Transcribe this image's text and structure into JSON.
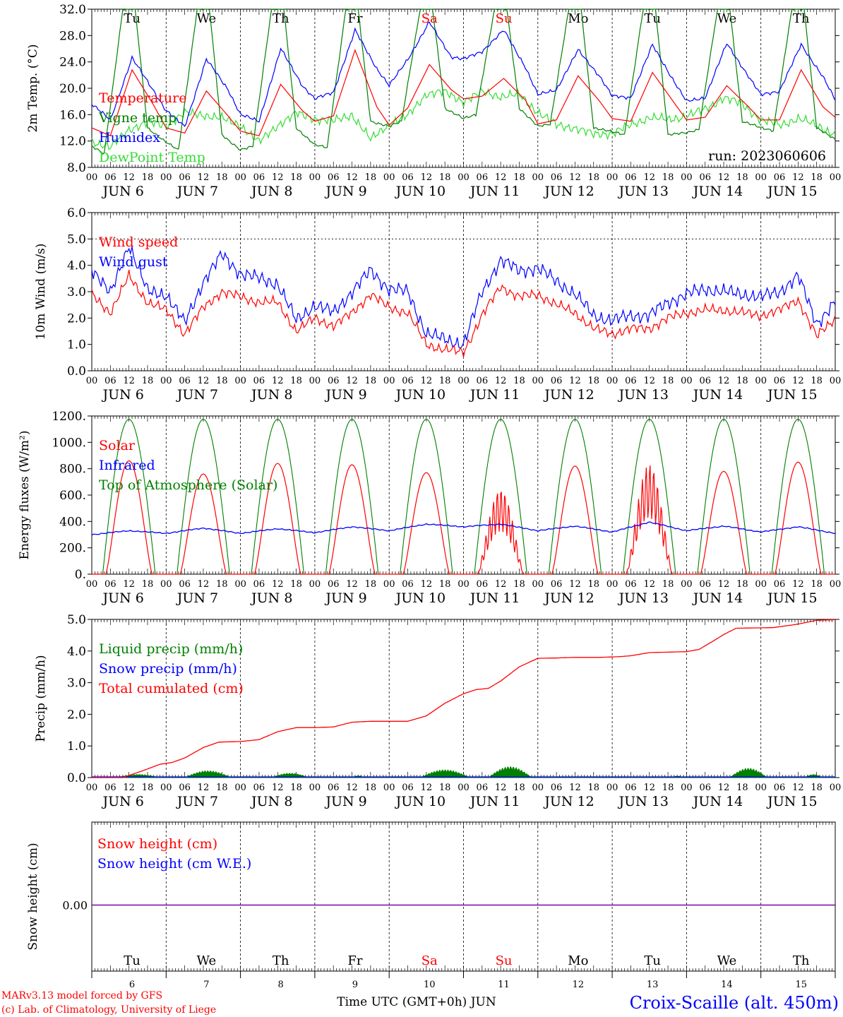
{
  "meta": {
    "footer_left_line1": "MARv3.13 model forced by GFS",
    "footer_left_line2": "(c) Lab. of Climatology, University of Liege",
    "footer_center": "Time UTC (GMT+0h) JUN",
    "footer_right": "Croix-Scaille (alt. 450m)",
    "run_label": "run: 2023060606",
    "colors": {
      "red": "#ff0000",
      "blue": "#0000ff",
      "darkgreen": "#008000",
      "lightgreen": "#33dd33",
      "purple": "#8000b0",
      "axis": "#000000"
    }
  },
  "days": {
    "weekday": [
      "Tu",
      "We",
      "Th",
      "Fr",
      "Sa",
      "Su",
      "Mo",
      "Tu",
      "We",
      "Th"
    ],
    "weekend_flags": [
      false,
      false,
      false,
      false,
      true,
      true,
      false,
      false,
      false,
      false
    ],
    "date_labels": [
      "JUN  6",
      "JUN  7",
      "JUN  8",
      "JUN  9",
      "JUN 10",
      "JUN 11",
      "JUN 12",
      "JUN 13",
      "JUN 14",
      "JUN 15"
    ],
    "day_numbers": [
      "6",
      "7",
      "8",
      "9",
      "10",
      "11",
      "12",
      "13",
      "14",
      "15"
    ],
    "hour_ticks": [
      "00",
      "06",
      "12",
      "18"
    ],
    "final_tick": "00"
  },
  "chart_data": [
    {
      "id": "temperature",
      "type": "line",
      "ylabel": "2m Temp. (°C)",
      "ylim": [
        8,
        32
      ],
      "yticks": [
        "8.0",
        "12.0",
        "16.0",
        "20.0",
        "24.0",
        "28.0",
        "32.0"
      ],
      "x_unit": "hours since JUN 6 00 UTC",
      "series": [
        {
          "name": "Temperature",
          "color": "#ff0000",
          "x": [
            0,
            6,
            13,
            20,
            24,
            30,
            37,
            44,
            48,
            54,
            61,
            68,
            72,
            78,
            85,
            92,
            96,
            102,
            109,
            116,
            120,
            126,
            133,
            140,
            144,
            150,
            157,
            164,
            168,
            174,
            181,
            188,
            192,
            198,
            205,
            212,
            216,
            222,
            229,
            236,
            240
          ],
          "values": [
            14.0,
            12.8,
            22.8,
            17.4,
            14.0,
            13.2,
            19.6,
            15.8,
            13.5,
            12.8,
            20.6,
            16.6,
            15.0,
            15.8,
            25.8,
            17.2,
            14.4,
            17.0,
            23.6,
            19.8,
            18.4,
            18.8,
            21.5,
            18.2,
            14.6,
            15.2,
            21.9,
            18.0,
            15.4,
            15.0,
            22.4,
            17.8,
            15.2,
            15.6,
            20.4,
            17.2,
            15.2,
            15.2,
            22.8,
            17.2,
            15.6
          ]
        },
        {
          "name": "Vigne temp",
          "color": "#008000",
          "x": [
            0,
            4,
            10,
            14,
            18,
            24,
            28,
            34,
            38,
            42,
            48,
            52,
            58,
            62,
            66,
            72,
            76,
            82,
            86,
            90,
            96,
            100,
            106,
            110,
            114,
            120,
            124,
            130,
            134,
            138,
            144,
            148,
            154,
            158,
            162,
            168,
            172,
            178,
            182,
            186,
            192,
            196,
            202,
            206,
            210,
            216,
            220,
            226,
            230,
            234,
            240
          ],
          "values": [
            11.2,
            10.0,
            32,
            32,
            14,
            11.8,
            10.6,
            32,
            32,
            13,
            10.6,
            11.2,
            32,
            32,
            14,
            11.4,
            11.0,
            32,
            32,
            15,
            14.2,
            15.0,
            32,
            32,
            17,
            15.4,
            16.0,
            32,
            32,
            17,
            14.2,
            14.6,
            32,
            32,
            14,
            13.4,
            13.0,
            32,
            32,
            13,
            13.2,
            13.8,
            32,
            32,
            15,
            14.0,
            13.6,
            32,
            32,
            14,
            12.2
          ]
        },
        {
          "name": "Humidex",
          "color": "#0000ff",
          "x": [
            0,
            6,
            13,
            20,
            24,
            30,
            37,
            44,
            48,
            54,
            61,
            68,
            72,
            78,
            85,
            92,
            96,
            102,
            109,
            116,
            120,
            126,
            133,
            140,
            144,
            150,
            157,
            164,
            168,
            174,
            181,
            188,
            192,
            198,
            205,
            212,
            216,
            222,
            229,
            236,
            240
          ],
          "values": [
            17.6,
            15.2,
            24.6,
            19.6,
            16.6,
            14.2,
            24.4,
            19.8,
            16.0,
            15.0,
            26.0,
            20.4,
            18.4,
            19.4,
            28.8,
            23.0,
            20.4,
            24.4,
            30.0,
            24.8,
            24.4,
            25.6,
            28.8,
            23.2,
            19.0,
            19.8,
            25.8,
            21.8,
            18.8,
            18.6,
            26.6,
            21.0,
            18.0,
            18.6,
            26.8,
            21.8,
            19.0,
            19.6,
            26.6,
            21.8,
            18.2
          ]
        },
        {
          "name": "DewPoint Temp",
          "color": "#33dd33",
          "x": [
            0,
            6,
            12,
            18,
            24,
            30,
            36,
            42,
            48,
            54,
            60,
            66,
            72,
            78,
            84,
            90,
            96,
            102,
            108,
            114,
            120,
            126,
            132,
            138,
            144,
            150,
            156,
            162,
            168,
            174,
            180,
            186,
            192,
            198,
            204,
            210,
            216,
            222,
            228,
            234,
            240
          ],
          "values": [
            12.0,
            11.0,
            13.8,
            14.8,
            14.4,
            16.2,
            16.0,
            15.4,
            14.4,
            11.8,
            14.4,
            16.2,
            15.4,
            15.0,
            16.0,
            12.2,
            14.6,
            15.8,
            19.2,
            19.4,
            18.0,
            19.4,
            18.8,
            19.0,
            16.4,
            14.4,
            14.0,
            13.0,
            13.2,
            14.4,
            15.6,
            15.2,
            15.8,
            16.8,
            18.6,
            17.6,
            15.2,
            14.4,
            15.4,
            14.4,
            13.0
          ]
        }
      ]
    },
    {
      "id": "wind",
      "type": "line",
      "ylabel": "10m Wind (m/s)",
      "ylim": [
        0,
        6
      ],
      "yticks": [
        "0.0",
        "1.0",
        "2.0",
        "3.0",
        "4.0",
        "5.0",
        "6.0"
      ],
      "dashed_reference": 5.0,
      "series": [
        {
          "name": "Wind speed",
          "color": "#ff0000",
          "x": [
            0,
            6,
            12,
            18,
            24,
            30,
            36,
            42,
            48,
            54,
            60,
            66,
            72,
            78,
            84,
            90,
            96,
            102,
            108,
            114,
            120,
            126,
            132,
            138,
            144,
            150,
            156,
            162,
            168,
            174,
            180,
            186,
            192,
            198,
            204,
            210,
            216,
            222,
            228,
            234,
            240
          ],
          "values": [
            2.9,
            2.2,
            3.6,
            2.6,
            2.3,
            1.4,
            2.4,
            3.0,
            2.8,
            2.6,
            2.6,
            1.5,
            2.0,
            1.7,
            2.2,
            2.9,
            2.4,
            2.2,
            1.0,
            0.8,
            0.7,
            2.1,
            3.2,
            2.8,
            2.9,
            2.5,
            2.2,
            1.6,
            1.4,
            1.6,
            1.6,
            2.0,
            2.2,
            2.3,
            2.3,
            2.2,
            2.1,
            2.3,
            2.7,
            1.3,
            2.0
          ]
        },
        {
          "name": "Wind gust",
          "color": "#0000ff",
          "x": [
            0,
            6,
            12,
            18,
            24,
            30,
            36,
            42,
            48,
            54,
            60,
            66,
            72,
            78,
            84,
            90,
            96,
            102,
            108,
            114,
            120,
            126,
            132,
            138,
            144,
            150,
            156,
            162,
            168,
            174,
            180,
            186,
            192,
            198,
            204,
            210,
            216,
            222,
            228,
            234,
            240
          ],
          "values": [
            3.9,
            2.9,
            4.8,
            3.0,
            2.9,
            1.8,
            3.4,
            4.4,
            3.7,
            3.5,
            3.3,
            1.9,
            2.5,
            2.2,
            3.0,
            3.8,
            3.1,
            3.0,
            1.4,
            1.2,
            1.0,
            3.0,
            4.2,
            3.8,
            3.9,
            3.4,
            2.9,
            2.1,
            1.9,
            2.1,
            2.1,
            2.6,
            2.9,
            3.1,
            3.0,
            2.9,
            2.8,
            3.0,
            3.6,
            1.8,
            2.6
          ]
        }
      ]
    },
    {
      "id": "energy",
      "type": "line",
      "ylabel": "Energy fluxes (W/m²)",
      "ylim": [
        0,
        1200
      ],
      "yticks": [
        "0.",
        "200.",
        "400.",
        "600.",
        "800.",
        "1000.",
        "1200."
      ],
      "series": [
        {
          "name": "Solar",
          "color": "#ff0000",
          "daily_peaks": [
            860,
            760,
            840,
            830,
            770,
            650,
            820,
            840,
            780,
            850
          ]
        },
        {
          "name": "Infrared",
          "color": "#0000ff",
          "x": [
            0,
            12,
            24,
            36,
            48,
            60,
            72,
            84,
            96,
            108,
            120,
            132,
            144,
            156,
            168,
            180,
            192,
            204,
            216,
            228,
            240
          ],
          "values": [
            300,
            330,
            310,
            350,
            310,
            345,
            315,
            360,
            330,
            380,
            360,
            380,
            330,
            365,
            320,
            395,
            330,
            365,
            320,
            360,
            310
          ]
        },
        {
          "name": "Top of Atmosphere (Solar)",
          "color": "#008000",
          "daily_peak": 1175
        }
      ]
    },
    {
      "id": "precip",
      "type": "line",
      "ylabel": "Precip (mm/h)",
      "ylim": [
        0,
        5
      ],
      "yticks": [
        "0.0",
        "1.0",
        "2.0",
        "3.0",
        "4.0",
        "5.0"
      ],
      "series": [
        {
          "name": "Liquid precip (mm/h)",
          "color": "#008000",
          "bursts": [
            [
              8,
              22,
              0.1
            ],
            [
              30,
              45,
              0.22
            ],
            [
              58,
              70,
              0.14
            ],
            [
              84,
              88,
              0.06
            ],
            [
              106,
              122,
              0.25
            ],
            [
              128,
              142,
              0.35
            ],
            [
              187,
              191,
              0.05
            ],
            [
              206,
              218,
              0.3
            ],
            [
              230,
              236,
              0.1
            ]
          ]
        },
        {
          "name": "Snow precip (mm/h)",
          "color": "#0000ff",
          "values": [
            0
          ]
        },
        {
          "name": "Total cumulated (cm)",
          "color": "#ff0000",
          "x": [
            0,
            10,
            16,
            22,
            26,
            30,
            36,
            41,
            44,
            48,
            54,
            60,
            66,
            72,
            78,
            84,
            90,
            96,
            102,
            108,
            114,
            120,
            124,
            128,
            132,
            138,
            144,
            150,
            156,
            164,
            170,
            174,
            180,
            188,
            192,
            196,
            200,
            204,
            208,
            214,
            220,
            228,
            234,
            240
          ],
          "values": [
            0,
            0,
            0.2,
            0.42,
            0.48,
            0.62,
            0.95,
            1.12,
            1.13,
            1.14,
            1.2,
            1.45,
            1.58,
            1.58,
            1.6,
            1.75,
            1.78,
            1.78,
            1.78,
            1.95,
            2.35,
            2.65,
            2.78,
            2.82,
            3.05,
            3.5,
            3.77,
            3.78,
            3.8,
            3.8,
            3.82,
            3.85,
            3.95,
            3.97,
            3.98,
            4.05,
            4.28,
            4.52,
            4.72,
            4.73,
            4.74,
            4.85,
            4.97,
            4.99
          ]
        }
      ]
    },
    {
      "id": "snow",
      "type": "line",
      "ylabel": "Snow height (cm)",
      "ylim": [
        -0.02,
        0.02
      ],
      "yticks": [
        "0.00"
      ],
      "series": [
        {
          "name": "Snow height (cm)",
          "color": "#ff0000",
          "values": [
            0
          ]
        },
        {
          "name": "Snow height (cm W.E.)",
          "color": "#0000ff",
          "values": [
            0
          ]
        }
      ]
    }
  ]
}
